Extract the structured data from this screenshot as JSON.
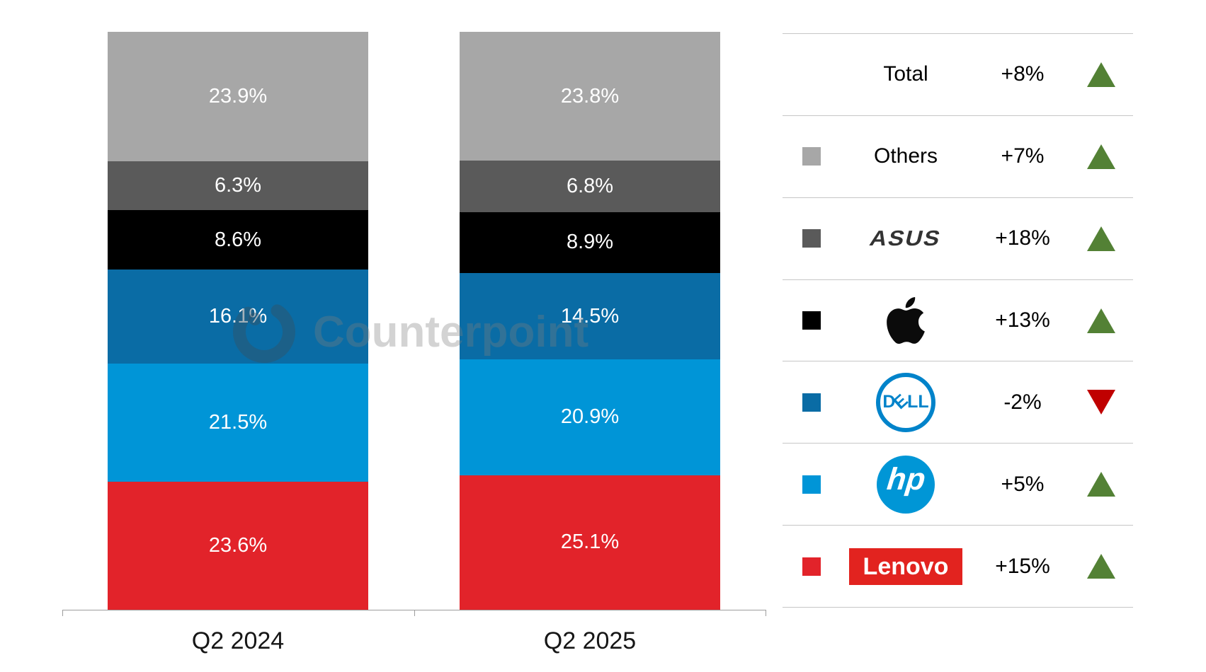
{
  "watermark": {
    "text": "Counterpoint"
  },
  "chart_data": {
    "type": "bar",
    "stacked": true,
    "title": "",
    "xlabel": "",
    "ylabel": "",
    "ylim": [
      0,
      100
    ],
    "value_suffix": "%",
    "grid": false,
    "legend_position": "right",
    "categories": [
      "Q2 2024",
      "Q2 2025"
    ],
    "series": [
      {
        "name": "Lenovo",
        "color": "#e2232a",
        "values": [
          23.6,
          25.1
        ]
      },
      {
        "name": "HP",
        "color": "#0095d7",
        "values": [
          21.5,
          20.9
        ]
      },
      {
        "name": "Dell",
        "color": "#0a6ca5",
        "values": [
          16.1,
          14.5
        ]
      },
      {
        "name": "Apple",
        "color": "#000000",
        "values": [
          8.6,
          8.9
        ]
      },
      {
        "name": "ASUS",
        "color": "#5a5a5a",
        "values": [
          6.3,
          6.8
        ]
      },
      {
        "name": "Others",
        "color": "#a7a7a7",
        "values": [
          23.9,
          23.8
        ]
      }
    ]
  },
  "legend": {
    "up_color": "#538135",
    "down_color": "#c00000",
    "rows": [
      {
        "name": "Total",
        "change": "+8%",
        "direction": "up",
        "swatch": null
      },
      {
        "name": "Others",
        "change": "+7%",
        "direction": "up",
        "swatch": "#a7a7a7"
      },
      {
        "name": "ASUS",
        "change": "+18%",
        "direction": "up",
        "swatch": "#5a5a5a"
      },
      {
        "name": "Apple",
        "change": "+13%",
        "direction": "up",
        "swatch": "#000000"
      },
      {
        "name": "Dell",
        "change": "-2%",
        "direction": "down",
        "swatch": "#0a6ca5"
      },
      {
        "name": "HP",
        "change": "+5%",
        "direction": "up",
        "swatch": "#0095d7"
      },
      {
        "name": "Lenovo",
        "change": "+15%",
        "direction": "up",
        "swatch": "#e2232a"
      }
    ]
  },
  "logos": {
    "asus_color": "#333333",
    "dell_letters": [
      "D",
      "E",
      "L",
      "L"
    ],
    "dell_color": "#0083ca",
    "hp_text": "hp",
    "hp_color": "#0096d6",
    "lenovo_text": "Lenovo",
    "lenovo_color": "#e2231f"
  }
}
